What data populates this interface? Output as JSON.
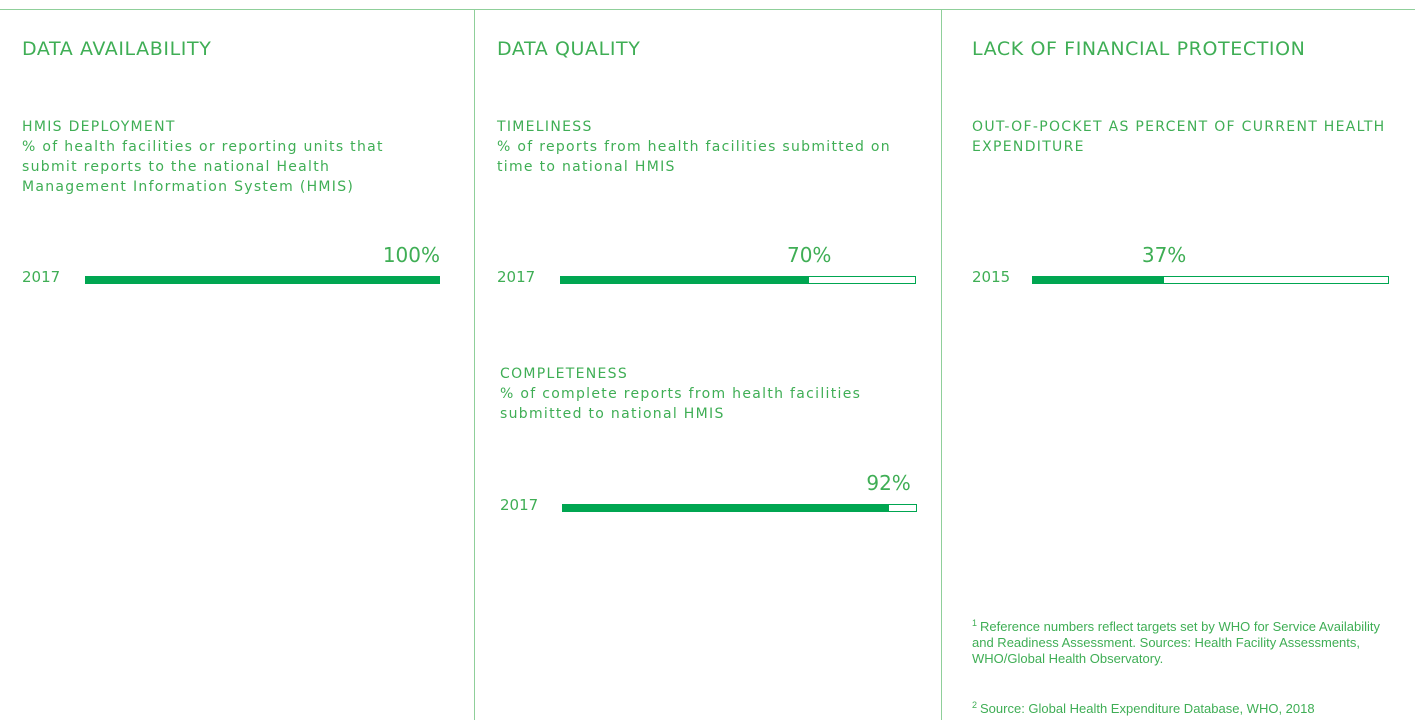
{
  "panels": [
    "DATA AVAILABILITY",
    "DATA QUALITY",
    "LACK OF FINANCIAL PROTECTION"
  ],
  "chart_data": [
    {
      "type": "progress",
      "title": "HMIS DEPLOYMENT",
      "subtitle": "% of health facilities or reporting units that submit reports to the national Health Management Information System (HMIS)",
      "categories": [
        "2017"
      ],
      "values": [
        100
      ],
      "value_labels": [
        "100%"
      ],
      "xlim": [
        0,
        100
      ],
      "color": "#00a651"
    },
    {
      "type": "progress",
      "title": "TIMELINESS",
      "subtitle": "% of reports from health facilities submitted on time to national HMIS",
      "categories": [
        "2017"
      ],
      "values": [
        70
      ],
      "value_labels": [
        "70%"
      ],
      "xlim": [
        0,
        100
      ],
      "color": "#00a651"
    },
    {
      "type": "progress",
      "title": "COMPLETENESS",
      "subtitle": "% of complete reports from health facilities submitted to national HMIS",
      "categories": [
        "2017"
      ],
      "values": [
        92
      ],
      "value_labels": [
        "92%"
      ],
      "xlim": [
        0,
        100
      ],
      "color": "#00a651"
    },
    {
      "type": "progress",
      "title": "OUT-OF-POCKET AS PERCENT OF CURRENT HEALTH EXPENDITURE",
      "categories": [
        "2015"
      ],
      "values": [
        37
      ],
      "value_labels": [
        "37%"
      ],
      "xlim": [
        0,
        100
      ],
      "color": "#00a651"
    }
  ],
  "footnotes": [
    {
      "marker": "1",
      "text": "Reference numbers reflect targets set by WHO for Service Availability and Readiness Assessment. Sources: Health Facility Assessments, WHO/Global Health Observatory."
    },
    {
      "marker": "2",
      "text": "Source: Global Health Expenditure Database, WHO, 2018"
    }
  ]
}
